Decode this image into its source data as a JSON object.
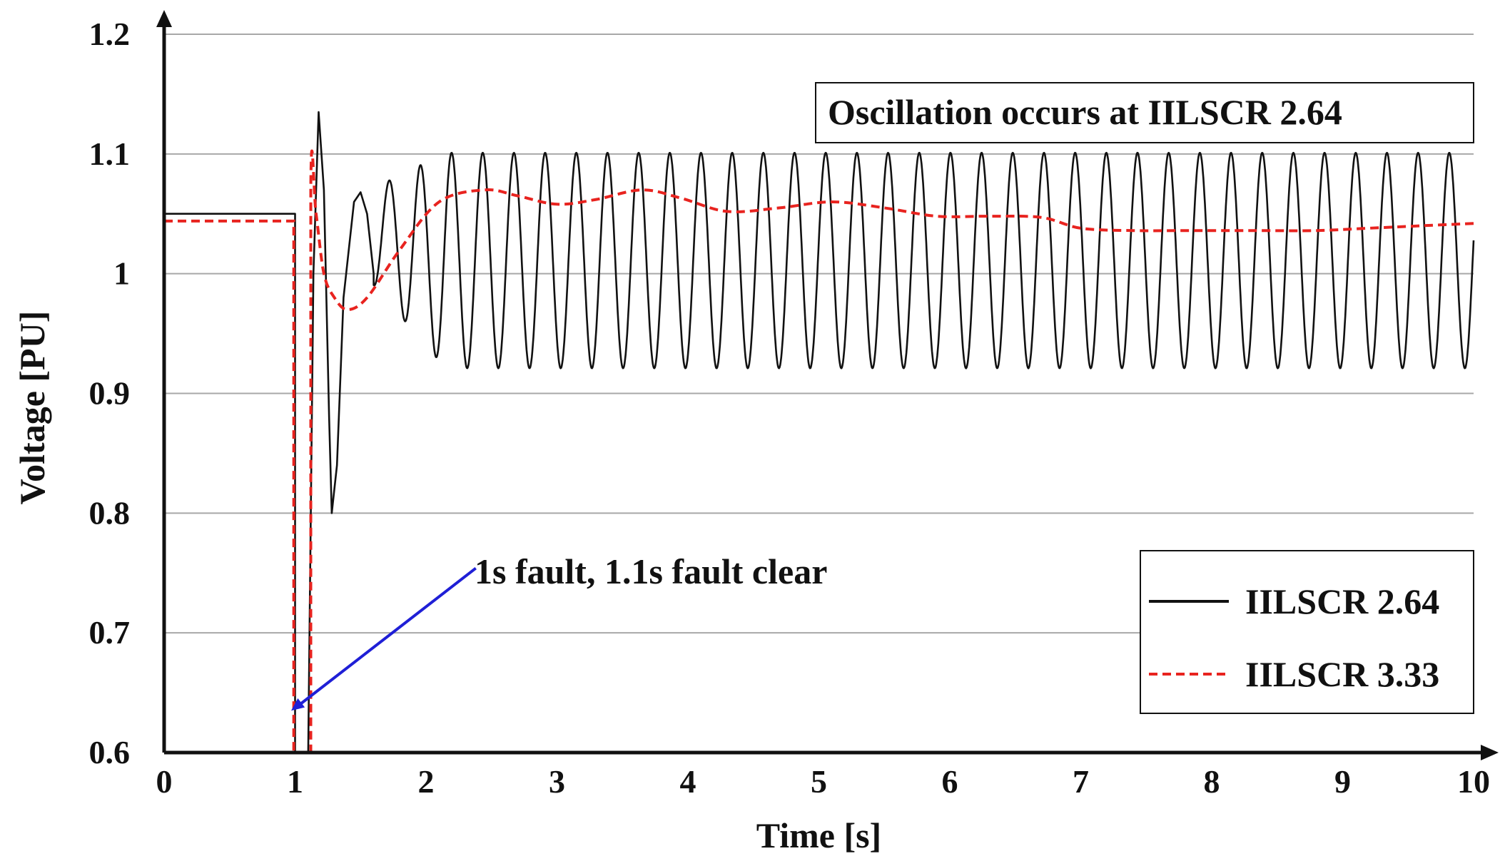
{
  "chart_data": {
    "type": "line",
    "title": "",
    "xlabel": "Time [s]",
    "ylabel": "Voltage [PU]",
    "xlim": [
      0,
      10
    ],
    "ylim": [
      0.6,
      1.2
    ],
    "x_ticks": [
      0,
      1,
      2,
      3,
      4,
      5,
      6,
      7,
      8,
      9,
      10
    ],
    "y_ticks": [
      0.6,
      0.7,
      0.8,
      0.9,
      1.0,
      1.1,
      1.2
    ],
    "y_tick_labels": [
      "0.6",
      "0.7",
      "0.8",
      "0.9",
      "1",
      "1.1",
      "1.2"
    ],
    "grid": "horizontal",
    "legend_position": "bottom-right",
    "annotations": [
      {
        "text": "Oscillation occurs at IILSCR 2.64",
        "boxed": true
      },
      {
        "text": "1s fault, 1.1s fault clear",
        "arrow_to": [
          0.97,
          0.635
        ],
        "arrow_from": [
          2.38,
          0.754
        ]
      }
    ],
    "series": [
      {
        "name": "IILSCR 2.64",
        "color": "#111111",
        "style": "solid",
        "description": "pre-fault 1.05, fault 1.0-1.1s, then sustained oscillation ~4.2 Hz, range ~0.92-1.10",
        "prefault_value": 1.05,
        "fault_start": 1.0,
        "fault_clear": 1.1,
        "fault_min": 0.6,
        "post_clear_points": [
          [
            1.1,
            0.6
          ],
          [
            1.14,
            1.0
          ],
          [
            1.18,
            1.135
          ],
          [
            1.22,
            1.07
          ],
          [
            1.26,
            0.88
          ],
          [
            1.28,
            0.8
          ],
          [
            1.32,
            0.84
          ],
          [
            1.37,
            0.98
          ],
          [
            1.45,
            1.06
          ],
          [
            1.5,
            1.068
          ],
          [
            1.55,
            1.05
          ],
          [
            1.6,
            1.0
          ]
        ],
        "oscillation": {
          "start": 1.6,
          "frequency_hz": 4.2,
          "center": 1.011,
          "amplitude": 0.09
        }
      },
      {
        "name": "IILSCR 3.33",
        "color": "#e8231f",
        "style": "dashed",
        "points": [
          [
            0,
            1.044
          ],
          [
            0.99,
            1.044
          ],
          [
            0.99,
            0.6
          ],
          [
            1.12,
            0.6
          ],
          [
            1.12,
            1.072
          ],
          [
            1.16,
            1.05
          ],
          [
            1.22,
            1.0
          ],
          [
            1.3,
            0.98
          ],
          [
            1.4,
            0.97
          ],
          [
            1.55,
            0.98
          ],
          [
            1.8,
            1.02
          ],
          [
            2.1,
            1.06
          ],
          [
            2.45,
            1.07
          ],
          [
            2.7,
            1.065
          ],
          [
            3.0,
            1.058
          ],
          [
            3.3,
            1.062
          ],
          [
            3.65,
            1.07
          ],
          [
            3.95,
            1.063
          ],
          [
            4.3,
            1.052
          ],
          [
            4.7,
            1.055
          ],
          [
            5.1,
            1.06
          ],
          [
            5.5,
            1.055
          ],
          [
            5.9,
            1.048
          ],
          [
            6.3,
            1.048
          ],
          [
            6.7,
            1.047
          ],
          [
            7.0,
            1.038
          ],
          [
            7.4,
            1.036
          ],
          [
            7.8,
            1.036
          ],
          [
            8.3,
            1.036
          ],
          [
            8.8,
            1.036
          ],
          [
            9.2,
            1.038
          ],
          [
            9.6,
            1.04
          ],
          [
            10.0,
            1.042
          ]
        ]
      }
    ]
  }
}
